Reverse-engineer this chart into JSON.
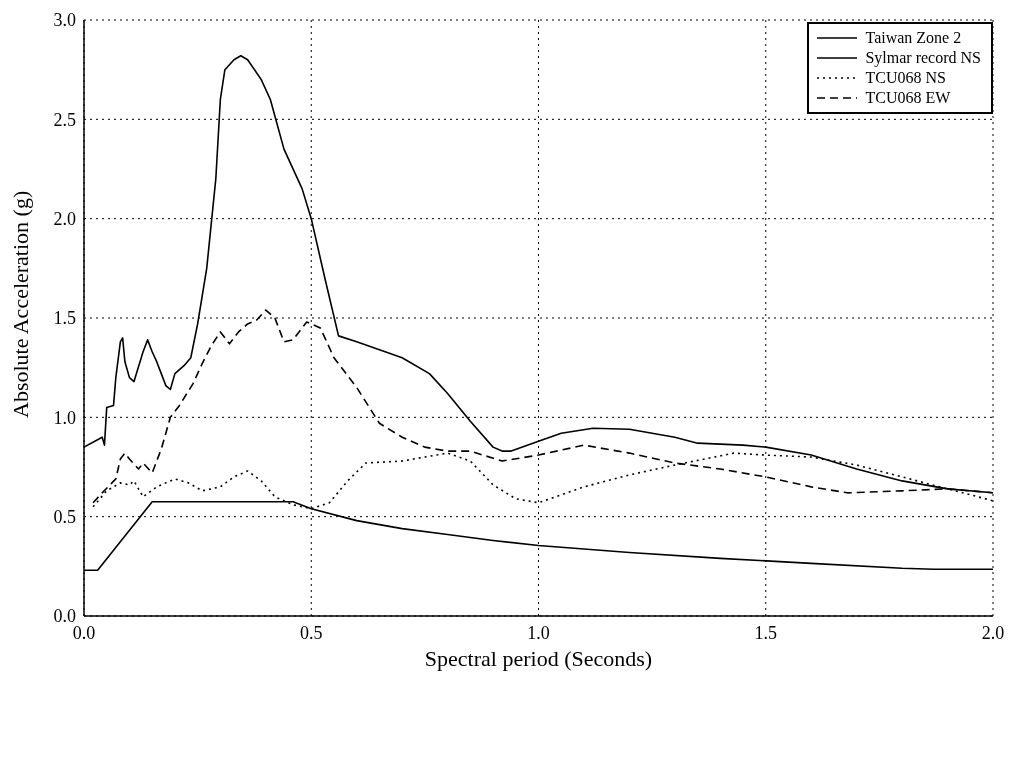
{
  "chart_data": {
    "type": "line",
    "xlabel": "Spectral period (Seconds)",
    "ylabel": "Absolute Acceleration (g)",
    "xlim": [
      0,
      2
    ],
    "xticks": [
      {
        "value": 0,
        "label": "0.0"
      },
      {
        "value": 0.5,
        "label": "0.5"
      },
      {
        "value": 1,
        "label": "1.0"
      },
      {
        "value": 1.5,
        "label": "1.5"
      },
      {
        "value": 2,
        "label": "2.0"
      }
    ],
    "ylim": [
      0,
      3
    ],
    "yticks": [
      {
        "value": 0,
        "label": "0.0"
      },
      {
        "value": 0.5,
        "label": "0.5"
      },
      {
        "value": 1,
        "label": "1.0"
      },
      {
        "value": 1.5,
        "label": "1.5"
      },
      {
        "value": 2,
        "label": "2.0"
      },
      {
        "value": 2.5,
        "label": "2.5"
      },
      {
        "value": 3,
        "label": "3.0"
      }
    ],
    "grid": true,
    "legend": "top right",
    "marker": "none",
    "series": [
      {
        "name": "Taiwan Zone 2",
        "color": "#000000",
        "line_style": "solid",
        "x": [
          0,
          0.03,
          0.15,
          0.46,
          0.5,
          0.6,
          0.7,
          0.8,
          0.9,
          1.0,
          1.2,
          1.4,
          1.6,
          1.8,
          1.87,
          2.0
        ],
        "values": [
          0.23,
          0.23,
          0.575,
          0.575,
          0.54,
          0.48,
          0.44,
          0.41,
          0.38,
          0.355,
          0.32,
          0.29,
          0.265,
          0.24,
          0.235,
          0.235
        ]
      },
      {
        "name": "Sylmar record NS",
        "color": "#000000",
        "line_style": "solid",
        "x": [
          0,
          0.04,
          0.045,
          0.05,
          0.065,
          0.07,
          0.08,
          0.085,
          0.09,
          0.1,
          0.11,
          0.13,
          0.14,
          0.15,
          0.16,
          0.17,
          0.18,
          0.19,
          0.2,
          0.22,
          0.235,
          0.25,
          0.27,
          0.29,
          0.3,
          0.31,
          0.33,
          0.345,
          0.36,
          0.39,
          0.41,
          0.44,
          0.48,
          0.5,
          0.53,
          0.56,
          0.6,
          0.7,
          0.76,
          0.8,
          0.85,
          0.9,
          0.92,
          0.94,
          1.0,
          1.05,
          1.12,
          1.2,
          1.3,
          1.35,
          1.45,
          1.5,
          1.6,
          1.7,
          1.8,
          1.9,
          2.0
        ],
        "values": [
          0.85,
          0.9,
          0.86,
          1.05,
          1.06,
          1.2,
          1.38,
          1.4,
          1.28,
          1.2,
          1.18,
          1.33,
          1.39,
          1.33,
          1.28,
          1.22,
          1.16,
          1.14,
          1.22,
          1.26,
          1.3,
          1.47,
          1.75,
          2.2,
          2.6,
          2.75,
          2.8,
          2.82,
          2.8,
          2.7,
          2.6,
          2.35,
          2.15,
          2.0,
          1.7,
          1.41,
          1.38,
          1.3,
          1.22,
          1.12,
          0.98,
          0.85,
          0.83,
          0.83,
          0.88,
          0.92,
          0.945,
          0.94,
          0.9,
          0.87,
          0.86,
          0.85,
          0.81,
          0.74,
          0.68,
          0.64,
          0.62
        ]
      },
      {
        "name": "TCU068 NS",
        "color": "#000000",
        "line_style": "dotted",
        "x": [
          0.02,
          0.05,
          0.08,
          0.1,
          0.11,
          0.13,
          0.16,
          0.2,
          0.23,
          0.26,
          0.3,
          0.33,
          0.36,
          0.39,
          0.42,
          0.46,
          0.5,
          0.54,
          0.58,
          0.62,
          0.7,
          0.75,
          0.8,
          0.85,
          0.9,
          0.95,
          1.0,
          1.1,
          1.2,
          1.3,
          1.43,
          1.5,
          1.6,
          1.7,
          1.8,
          1.9,
          2.0
        ],
        "values": [
          0.55,
          0.63,
          0.67,
          0.66,
          0.68,
          0.6,
          0.65,
          0.69,
          0.67,
          0.63,
          0.65,
          0.7,
          0.73,
          0.68,
          0.6,
          0.56,
          0.54,
          0.57,
          0.68,
          0.77,
          0.78,
          0.8,
          0.82,
          0.78,
          0.66,
          0.59,
          0.57,
          0.65,
          0.71,
          0.76,
          0.82,
          0.81,
          0.8,
          0.76,
          0.7,
          0.64,
          0.58
        ]
      },
      {
        "name": "TCU068 EW",
        "color": "#000000",
        "line_style": "dashed",
        "x": [
          0.02,
          0.04,
          0.07,
          0.08,
          0.09,
          0.1,
          0.12,
          0.13,
          0.15,
          0.17,
          0.19,
          0.21,
          0.24,
          0.26,
          0.28,
          0.3,
          0.32,
          0.34,
          0.36,
          0.38,
          0.4,
          0.42,
          0.44,
          0.46,
          0.49,
          0.52,
          0.55,
          0.6,
          0.65,
          0.7,
          0.75,
          0.8,
          0.85,
          0.92,
          1.0,
          1.1,
          1.2,
          1.3,
          1.4,
          1.5,
          1.6,
          1.68,
          1.8,
          1.9,
          2.0
        ],
        "values": [
          0.57,
          0.62,
          0.69,
          0.79,
          0.82,
          0.79,
          0.74,
          0.77,
          0.72,
          0.84,
          1.0,
          1.06,
          1.17,
          1.27,
          1.36,
          1.43,
          1.37,
          1.43,
          1.47,
          1.49,
          1.54,
          1.5,
          1.38,
          1.39,
          1.48,
          1.45,
          1.3,
          1.15,
          0.97,
          0.9,
          0.85,
          0.83,
          0.83,
          0.78,
          0.81,
          0.86,
          0.82,
          0.77,
          0.74,
          0.7,
          0.65,
          0.62,
          0.63,
          0.64,
          0.62
        ]
      }
    ]
  }
}
